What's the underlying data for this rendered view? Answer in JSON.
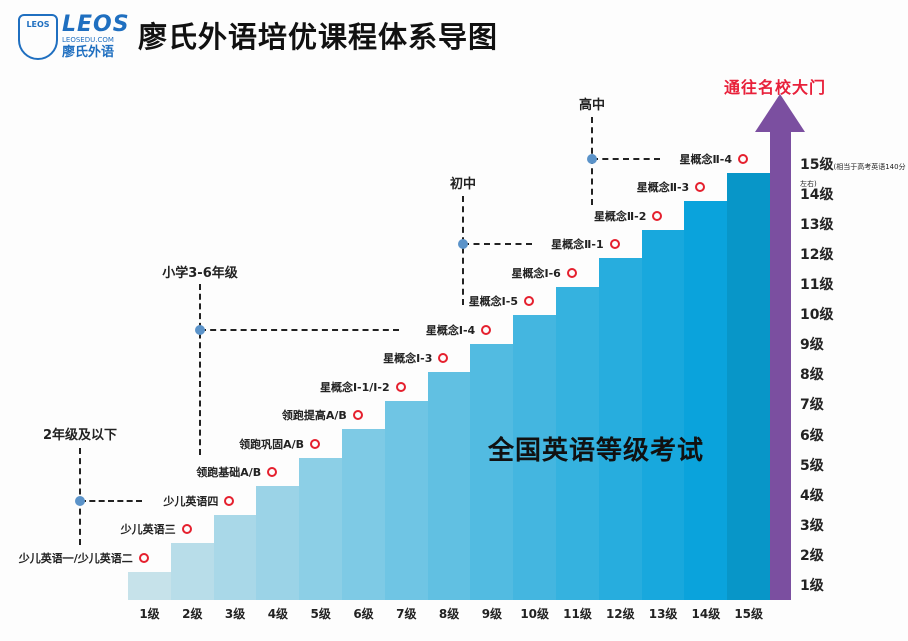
{
  "header": {
    "logo_brand": "LEOS",
    "logo_url": "LEOSEDU.COM",
    "logo_cn": "廖氏外语",
    "title": "廖氏外语培优课程体系导图"
  },
  "arrow_label": "通往名校大门",
  "center_label": "全国英语等级考试",
  "levels": [
    "1级",
    "2级",
    "3级",
    "4级",
    "5级",
    "6级",
    "7级",
    "8级",
    "9级",
    "10级",
    "11级",
    "12级",
    "13级",
    "14级",
    "15级"
  ],
  "level15_note": "(相当于高考英语140分左右)",
  "courses": [
    "少儿英语一/少儿英语二",
    "少儿英语三",
    "少儿英语四",
    "领跑基础A/B",
    "领跑巩固A/B",
    "领跑提高A/B",
    "星概念Ⅰ-1/Ⅰ-2",
    "星概念Ⅰ-3",
    "星概念Ⅰ-4",
    "星概念Ⅰ-5",
    "星概念Ⅰ-6",
    "星概念Ⅱ-1",
    "星概念Ⅱ-2",
    "星概念Ⅱ-3",
    "星概念Ⅱ-4"
  ],
  "stages": [
    {
      "label": "2年级及以下",
      "course_index": 2
    },
    {
      "label": "小学3-6年级",
      "course_index": 8
    },
    {
      "label": "初中",
      "course_index": 11
    },
    {
      "label": "高中",
      "course_index": 14
    }
  ],
  "colors": {
    "step_start": "#c6e2ea",
    "step_end": "#0aa3dc",
    "arrow": "#7b4fa0",
    "ring": "#e5202e",
    "dot": "#5b93c9"
  }
}
